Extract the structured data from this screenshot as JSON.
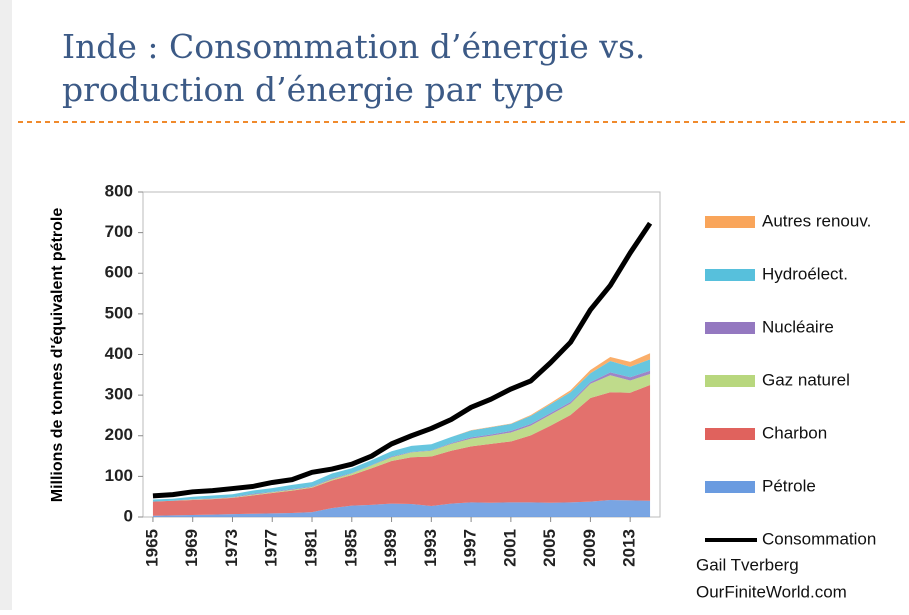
{
  "chart_data": {
    "type": "stacked_area",
    "title_lines": [
      "Inde : Consommation d’énergie vs.",
      "production d’énergie par type"
    ],
    "ylabel": "Millions de tonnes d'équivalent pétrole",
    "credit_lines": [
      "Gail Tverberg",
      "OurFiniteWorld.com"
    ],
    "x": [
      1965,
      1967,
      1969,
      1971,
      1973,
      1975,
      1977,
      1979,
      1981,
      1983,
      1985,
      1987,
      1989,
      1991,
      1993,
      1995,
      1997,
      1999,
      2001,
      2003,
      2005,
      2007,
      2009,
      2011,
      2013,
      2015
    ],
    "xlim": [
      1964,
      2016
    ],
    "xticks": [
      1965,
      1969,
      1973,
      1977,
      1981,
      1985,
      1989,
      1993,
      1997,
      2001,
      2005,
      2009,
      2013
    ],
    "ylim": [
      0,
      800
    ],
    "yticks": [
      0,
      100,
      200,
      300,
      400,
      500,
      600,
      700,
      800
    ],
    "grid": false,
    "series": [
      {
        "name": "Pétrole",
        "color": "#6a9be0",
        "values": [
          3,
          4,
          5,
          6,
          7,
          8,
          9,
          10,
          12,
          22,
          28,
          30,
          33,
          32,
          27,
          33,
          36,
          35,
          36,
          36,
          35,
          36,
          38,
          42,
          41,
          40
        ]
      },
      {
        "name": "Charbon",
        "color": "#e0625d",
        "values": [
          35,
          36,
          37,
          38,
          40,
          45,
          50,
          55,
          60,
          68,
          75,
          90,
          105,
          115,
          122,
          130,
          138,
          145,
          150,
          165,
          190,
          215,
          255,
          265,
          265,
          285
        ]
      },
      {
        "name": "Gaz naturel",
        "color": "#b8d77e",
        "values": [
          0,
          0,
          1,
          1,
          1,
          2,
          2,
          2,
          2,
          3,
          4,
          7,
          9,
          12,
          14,
          17,
          19,
          20,
          22,
          24,
          27,
          28,
          35,
          42,
          30,
          27
        ]
      },
      {
        "name": "Nucléaire",
        "color": "#9478c0",
        "values": [
          0,
          0,
          1,
          1,
          1,
          2,
          1,
          2,
          1,
          2,
          1,
          1,
          2,
          1,
          1,
          2,
          3,
          3,
          4,
          4,
          4,
          4,
          4,
          7,
          8,
          8
        ]
      },
      {
        "name": "Hydroélect.",
        "color": "#57c0dc",
        "values": [
          5,
          5,
          6,
          7,
          7,
          8,
          9,
          10,
          11,
          12,
          12,
          12,
          13,
          15,
          15,
          15,
          17,
          18,
          17,
          20,
          22,
          24,
          22,
          28,
          26,
          28
        ]
      },
      {
        "name": "Autres renouv.",
        "color": "#f9a55a",
        "values": [
          0,
          0,
          0,
          0,
          0,
          0,
          0,
          0,
          0,
          0,
          0,
          0,
          0,
          0,
          0,
          0,
          1,
          1,
          1,
          2,
          3,
          5,
          8,
          10,
          12,
          15
        ]
      }
    ],
    "line": {
      "name": "Consommation",
      "color": "#000000",
      "values": [
        52,
        55,
        62,
        65,
        70,
        75,
        85,
        92,
        110,
        118,
        130,
        150,
        180,
        200,
        218,
        240,
        270,
        290,
        315,
        335,
        380,
        430,
        510,
        570,
        650,
        723
      ]
    }
  }
}
